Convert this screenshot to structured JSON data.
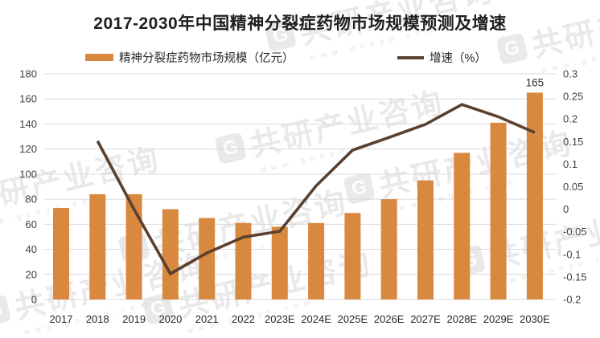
{
  "title": "2017-2030年中国精神分裂症药物市场规模预测及增速",
  "legend": {
    "bars": "精神分裂症药物市场规模（亿元）",
    "line": "增速（%）"
  },
  "watermark": {
    "logo_letter": "G",
    "brand": "共研产业咨询",
    "url": "www.gonyn.com"
  },
  "colors": {
    "bar": "#D8883F",
    "line": "#5B4030",
    "grid": "#D9D9D9",
    "axis_text": "#404040",
    "x_axis_text": "#262626",
    "title_text": "#1F1F1F",
    "value_label": "#333333"
  },
  "chart_data": {
    "type": "bar+line combo",
    "title": "2017-2030年中国精神分裂症药物市场规模预测及增速",
    "categories": [
      "2017",
      "2018",
      "2019",
      "2020",
      "2021",
      "2022",
      "2023E",
      "2024E",
      "2025E",
      "2026E",
      "2027E",
      "2028E",
      "2029E",
      "2030E"
    ],
    "series": [
      {
        "name": "精神分裂症药物市场规模（亿元）",
        "type": "bar",
        "axis": "left",
        "values": [
          73,
          84,
          84,
          72,
          65,
          61,
          58,
          61,
          69,
          80,
          95,
          117,
          141,
          165
        ]
      },
      {
        "name": "增速（%）",
        "type": "line",
        "axis": "right",
        "values": [
          null,
          0.151,
          0.0,
          -0.143,
          -0.097,
          -0.062,
          -0.049,
          0.052,
          0.131,
          0.159,
          0.188,
          0.232,
          0.205,
          0.17
        ]
      }
    ],
    "left_axis": {
      "min": 0,
      "max": 180,
      "step": 20,
      "ticks": [
        "180",
        "160",
        "140",
        "120",
        "100",
        "80",
        "60",
        "40",
        "20",
        "0"
      ]
    },
    "right_axis": {
      "min": -0.2,
      "max": 0.3,
      "step": 0.05,
      "ticks": [
        "0.3",
        "0.25",
        "0.2",
        "0.15",
        "0.1",
        "0.05",
        "0",
        "-0.05",
        "-0.1",
        "-0.15",
        "-0.2"
      ]
    },
    "data_label": {
      "category": "2030E",
      "index": 13,
      "text": "165"
    },
    "grid": true,
    "legend_position": "top"
  }
}
